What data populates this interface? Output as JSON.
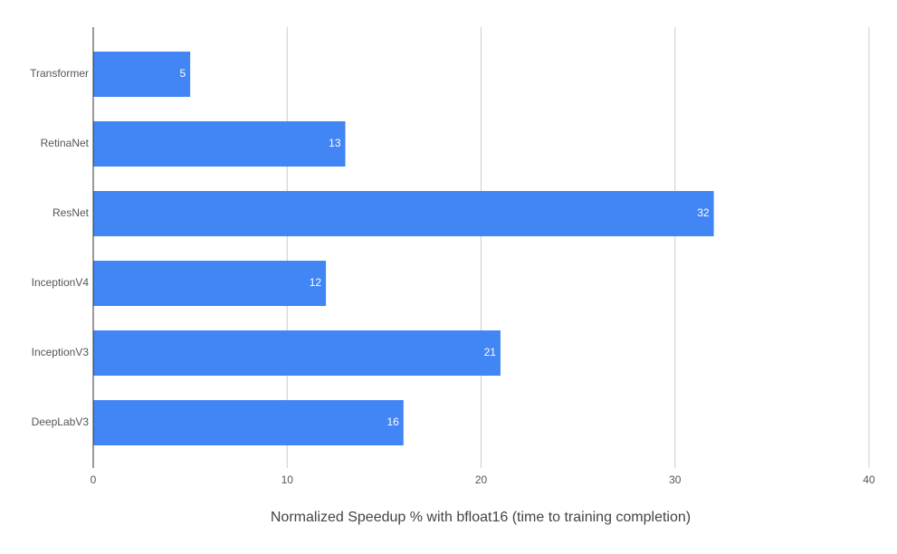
{
  "chart_data": {
    "type": "bar",
    "orientation": "horizontal",
    "categories": [
      "Transformer",
      "RetinaNet",
      "ResNet",
      "InceptionV4",
      "InceptionV3",
      "DeepLabV3"
    ],
    "values": [
      5,
      13,
      32,
      12,
      21,
      16
    ],
    "color": "#4285f4",
    "xlabel": "Normalized Speedup % with bfloat16 (time to training completion)",
    "xlim": [
      0,
      40
    ],
    "xticks": [
      0,
      10,
      20,
      30,
      40
    ],
    "grid": true,
    "data_labels": true
  }
}
